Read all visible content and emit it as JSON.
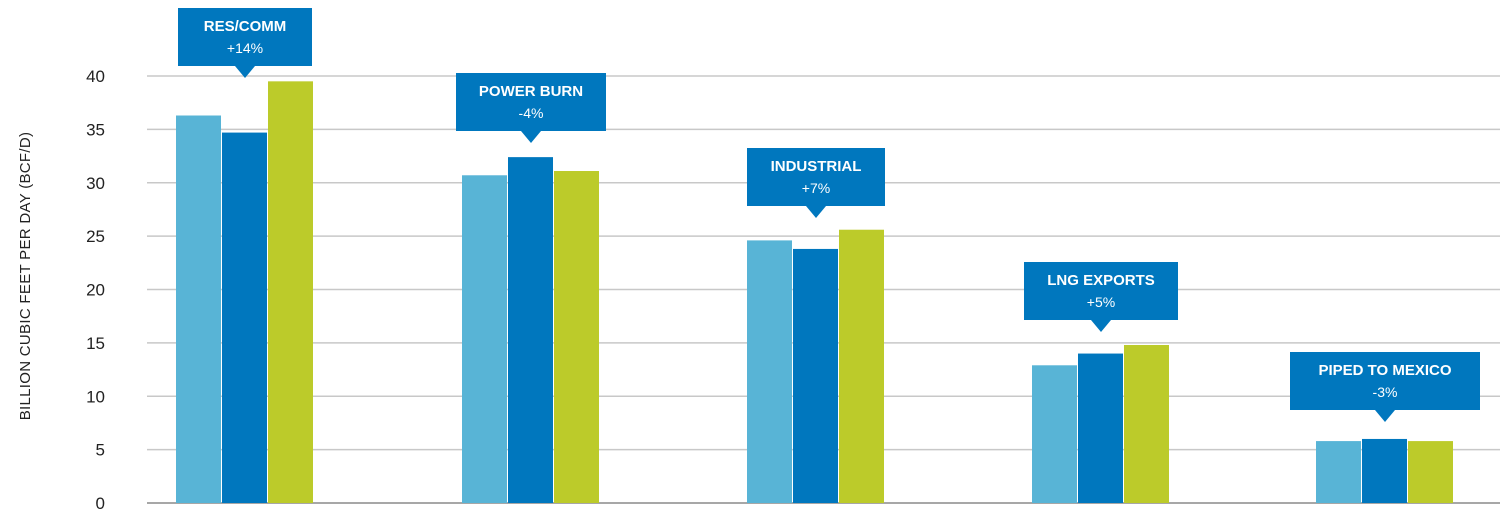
{
  "chart_data": {
    "type": "bar",
    "ylabel": "BILLION CUBIC FEET PER DAY (BCF/D)",
    "xlabel": "",
    "ylim": [
      0,
      40
    ],
    "yticks": [
      0,
      5,
      10,
      15,
      20,
      25,
      30,
      35,
      40
    ],
    "grid": true,
    "categories": [
      "RES/COMM",
      "POWER BURN",
      "INDUSTRIAL",
      "LNG EXPORTS",
      "PIPED TO MEXICO"
    ],
    "series": [
      {
        "values": [
          36.3,
          30.7,
          24.6,
          12.9,
          5.8
        ]
      },
      {
        "values": [
          34.7,
          32.4,
          23.8,
          14.0,
          6.0
        ]
      },
      {
        "values": [
          39.5,
          31.1,
          25.6,
          14.8,
          5.8
        ]
      }
    ],
    "annotations": [
      {
        "label": "RES/COMM",
        "change": "+14%"
      },
      {
        "label": "POWER BURN",
        "change": "-4%"
      },
      {
        "label": "INDUSTRIAL",
        "change": "+7%"
      },
      {
        "label": "LNG EXPORTS",
        "change": "+5%"
      },
      {
        "label": "PIPED TO MEXICO",
        "change": "-3%"
      }
    ],
    "colors": {
      "series": [
        "#58b4d6",
        "#0077be",
        "#bccb2a"
      ],
      "callout": "#0077be",
      "grid": "#c8c8c8"
    }
  }
}
